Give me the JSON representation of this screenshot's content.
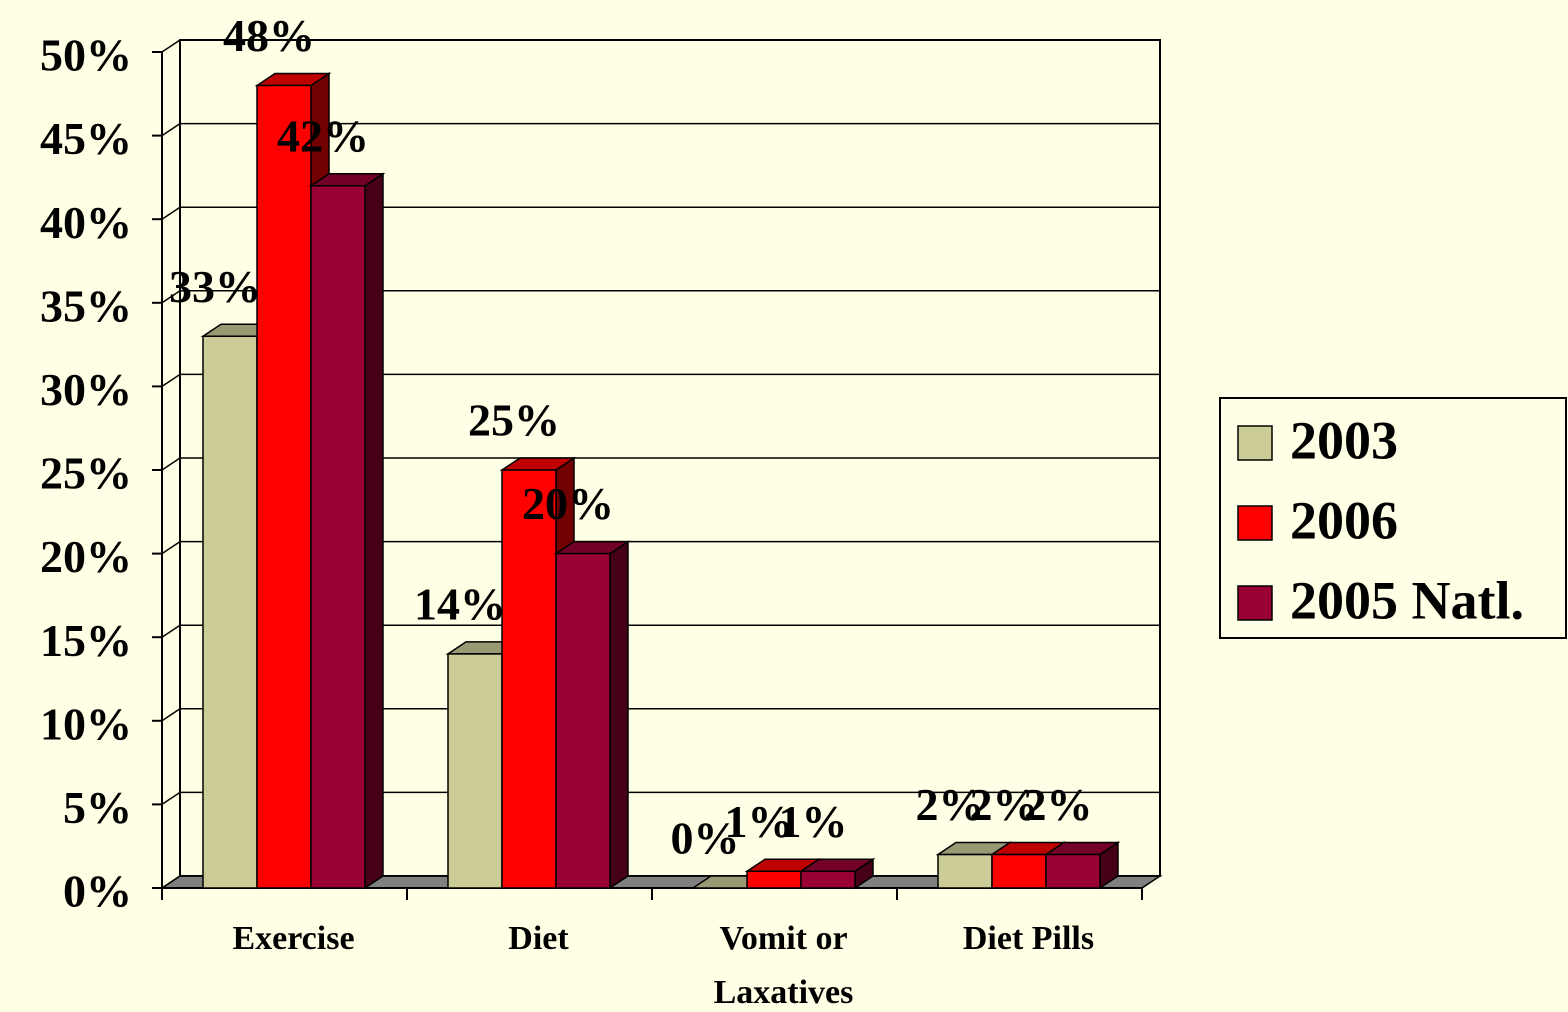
{
  "chart_data": {
    "type": "bar3d",
    "categories": [
      "Exercise",
      "Diet",
      "Vomit or Laxatives",
      "Diet Pills"
    ],
    "series": [
      {
        "name": "2003",
        "color": "#cccc99",
        "values": [
          33,
          14,
          0,
          2
        ],
        "value_labels": [
          "33%",
          "14%",
          "0%",
          "2%"
        ]
      },
      {
        "name": "2006",
        "color": "#ff0000",
        "values": [
          48,
          25,
          1,
          2
        ],
        "value_labels": [
          "48%",
          "25%",
          "1%",
          "2%"
        ]
      },
      {
        "name": "2005 Natl.",
        "color": "#990033",
        "values": [
          42,
          20,
          1,
          2
        ],
        "value_labels": [
          "42%",
          "20%",
          "1%",
          "2%"
        ]
      }
    ],
    "ylim": [
      0,
      50
    ],
    "yticks": [
      {
        "value": 0,
        "label": "0%"
      },
      {
        "value": 5,
        "label": "5%"
      },
      {
        "value": 10,
        "label": "10%"
      },
      {
        "value": 15,
        "label": "15%"
      },
      {
        "value": 20,
        "label": "20%"
      },
      {
        "value": 25,
        "label": "25%"
      },
      {
        "value": 30,
        "label": "30%"
      },
      {
        "value": 35,
        "label": "35%"
      },
      {
        "value": 40,
        "label": "40%"
      },
      {
        "value": 45,
        "label": "45%"
      },
      {
        "value": 50,
        "label": "50%"
      }
    ],
    "grid": true,
    "legend": "right"
  }
}
